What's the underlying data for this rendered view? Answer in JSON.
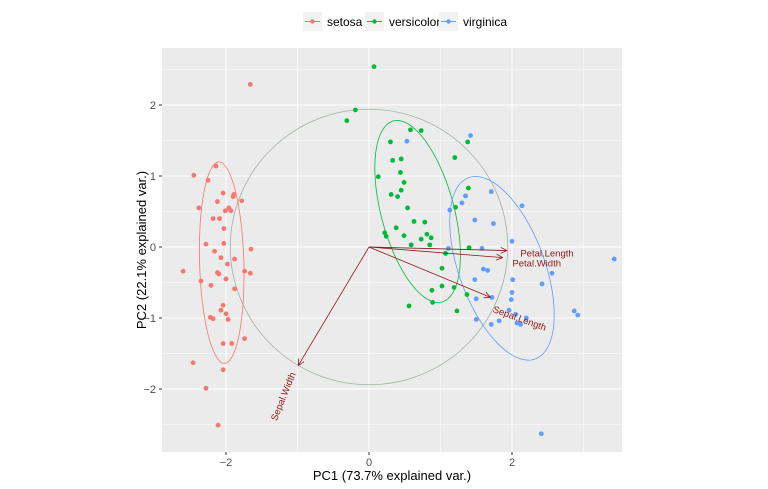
{
  "chart_data": {
    "type": "scatter",
    "xlabel": "PC1 (73.7% explained var.)",
    "ylabel": "PC2 (22.1% explained var.)",
    "xlim": [
      -2.9,
      3.55
    ],
    "ylim": [
      -2.88,
      2.8
    ],
    "xticks": [
      -2,
      0,
      2
    ],
    "yticks": [
      -2,
      -1,
      0,
      1,
      2
    ],
    "grid": true,
    "legend_position": "top",
    "series": [
      {
        "name": "setosa",
        "color": "#F8766D",
        "points": [
          [
            -1.66,
            2.29
          ],
          [
            -2.45,
            1.01
          ],
          [
            -2.14,
            1.14
          ],
          [
            -2.25,
            0.94
          ],
          [
            -2.38,
            0.55
          ],
          [
            -2.12,
            0.64
          ],
          [
            -2.18,
            0.4
          ],
          [
            -2.09,
            0.4
          ],
          [
            -2.04,
            0.76
          ],
          [
            -1.89,
            0.74
          ],
          [
            -1.9,
            0.71
          ],
          [
            -1.96,
            0.55
          ],
          [
            -2.01,
            0.51
          ],
          [
            -1.93,
            0.51
          ],
          [
            -1.78,
            0.65
          ],
          [
            -2.03,
            0.26
          ],
          [
            -2.28,
            0.04
          ],
          [
            -2.03,
            0.05
          ],
          [
            -2.16,
            -0.06
          ],
          [
            -1.65,
            -0.03
          ],
          [
            -2.07,
            -0.15
          ],
          [
            -2.6,
            -0.34
          ],
          [
            -2.35,
            -0.48
          ],
          [
            -1.98,
            -0.24
          ],
          [
            -1.88,
            -0.17
          ],
          [
            -2.12,
            -0.36
          ],
          [
            -2.1,
            -0.38
          ],
          [
            -2.21,
            -0.54
          ],
          [
            -2.0,
            -0.45
          ],
          [
            -1.74,
            -0.34
          ],
          [
            -1.66,
            -0.37
          ],
          [
            -1.88,
            -0.59
          ],
          [
            -2.04,
            -0.82
          ],
          [
            -2.07,
            -0.89
          ],
          [
            -2.0,
            -0.94
          ],
          [
            -2.22,
            -0.99
          ],
          [
            -2.18,
            -1.01
          ],
          [
            -1.97,
            -1.02
          ],
          [
            -1.74,
            -1.29
          ],
          [
            -2.04,
            -1.36
          ],
          [
            -1.92,
            -1.36
          ],
          [
            -2.46,
            -1.63
          ],
          [
            -2.04,
            -1.73
          ],
          [
            -2.28,
            -1.99
          ],
          [
            -2.11,
            -2.51
          ]
        ],
        "ellipse": {
          "center": [
            -2.06,
            -0.22
          ],
          "major": 1.42,
          "minor": 0.31,
          "angle_deg": 91.6
        }
      },
      {
        "name": "versicolor",
        "color": "#00BA38",
        "points": [
          [
            0.07,
            2.54
          ],
          [
            -0.19,
            1.93
          ],
          [
            -0.31,
            1.78
          ],
          [
            0.58,
            1.65
          ],
          [
            0.73,
            1.64
          ],
          [
            0.3,
            1.48
          ],
          [
            1.38,
            1.48
          ],
          [
            0.33,
            1.22
          ],
          [
            0.45,
            1.24
          ],
          [
            1.2,
            1.26
          ],
          [
            0.13,
            0.99
          ],
          [
            0.44,
            1.05
          ],
          [
            0.49,
            0.91
          ],
          [
            0.45,
            0.8
          ],
          [
            0.31,
            0.74
          ],
          [
            0.4,
            0.71
          ],
          [
            1.39,
            0.83
          ],
          [
            1.21,
            0.56
          ],
          [
            0.54,
            0.55
          ],
          [
            0.63,
            0.36
          ],
          [
            0.78,
            0.35
          ],
          [
            0.38,
            0.27
          ],
          [
            0.22,
            0.2
          ],
          [
            0.24,
            0.15
          ],
          [
            0.49,
            0.16
          ],
          [
            0.81,
            0.18
          ],
          [
            0.73,
            0.11
          ],
          [
            0.87,
            0.13
          ],
          [
            0.59,
            0.03
          ],
          [
            0.85,
            0.03
          ],
          [
            1.4,
            -0.01
          ],
          [
            1.07,
            -0.09
          ],
          [
            1.02,
            -0.3
          ],
          [
            1.19,
            -0.57
          ],
          [
            1.02,
            -0.55
          ],
          [
            0.88,
            -0.61
          ],
          [
            1.37,
            -0.67
          ],
          [
            0.89,
            -0.78
          ],
          [
            0.56,
            -0.83
          ],
          [
            1.23,
            -0.9
          ]
        ],
        "ellipse": {
          "center": [
            0.68,
            0.5
          ],
          "major": 1.32,
          "minor": 0.51,
          "angle_deg": 104.9
        }
      },
      {
        "name": "virginica",
        "color": "#619CFF",
        "points": [
          [
            0.53,
            1.49
          ],
          [
            1.42,
            1.57
          ],
          [
            1.71,
            0.78
          ],
          [
            1.35,
            0.72
          ],
          [
            1.3,
            0.62
          ],
          [
            1.13,
            0.52
          ],
          [
            2.14,
            0.58
          ],
          [
            1.48,
            0.38
          ],
          [
            1.74,
            0.33
          ],
          [
            2.0,
            0.08
          ],
          [
            1.11,
            -0.02
          ],
          [
            1.58,
            -0.02
          ],
          [
            3.43,
            -0.17
          ],
          [
            2.56,
            -0.37
          ],
          [
            1.6,
            -0.31
          ],
          [
            1.66,
            -0.33
          ],
          [
            1.48,
            -0.46
          ],
          [
            2.01,
            -0.46
          ],
          [
            2.42,
            -0.52
          ],
          [
            2.0,
            -0.64
          ],
          [
            1.5,
            -0.73
          ],
          [
            1.72,
            -0.71
          ],
          [
            1.99,
            -0.74
          ],
          [
            1.96,
            -0.89
          ],
          [
            2.87,
            -0.9
          ],
          [
            2.92,
            -0.96
          ],
          [
            1.5,
            -1.02
          ],
          [
            1.82,
            -1.04
          ],
          [
            1.71,
            -1.09
          ],
          [
            2.07,
            -1.07
          ],
          [
            2.12,
            -1.09
          ],
          [
            2.41,
            -2.63
          ],
          [
            2.05,
            -0.95
          ],
          [
            2.2,
            -1.0
          ]
        ],
        "ellipse": {
          "center": [
            1.86,
            -0.3
          ],
          "major": 1.36,
          "minor": 0.6,
          "angle_deg": 110.0
        }
      }
    ],
    "circle_radius": 1.94,
    "variables": [
      {
        "name": "Petal.Length",
        "x": 1.93,
        "y": -0.05
      },
      {
        "name": "Petal.Width",
        "x": 1.87,
        "y": -0.15
      },
      {
        "name": "Sepal.Length",
        "x": 1.7,
        "y": -0.71
      },
      {
        "name": "Sepal.Width",
        "x": -0.99,
        "y": -1.67
      }
    ],
    "arrow_color": "#8B1A1A"
  },
  "legend": [
    "setosa",
    "versicolor",
    "virginica"
  ]
}
